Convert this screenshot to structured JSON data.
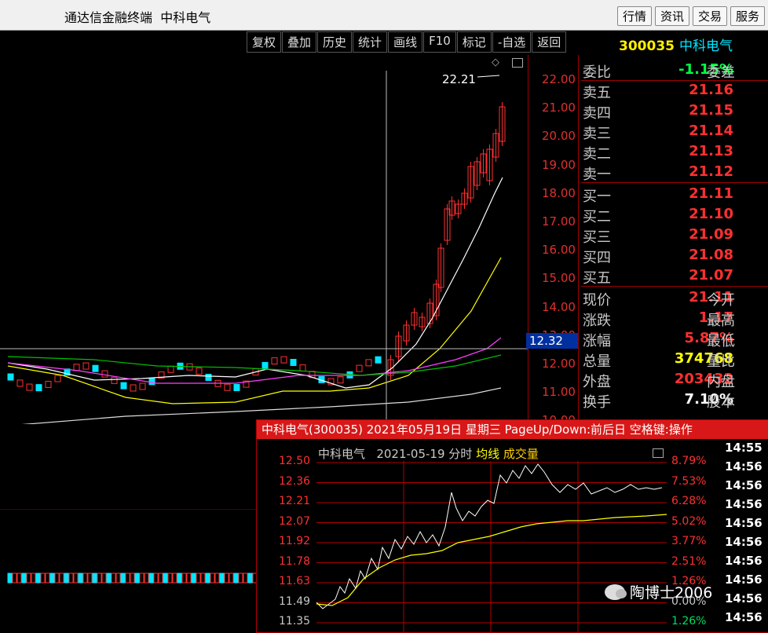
{
  "window": {
    "app_title": "通达信金融终端",
    "stock_name": "中科电气",
    "menu": [
      "行情",
      "资讯",
      "交易",
      "服务"
    ]
  },
  "toolbar": [
    "复权",
    "叠加",
    "历史",
    "统计",
    "画线",
    "F10",
    "标记",
    "-自选",
    "返回"
  ],
  "stock": {
    "code": "300035",
    "name": "中科电气"
  },
  "price_axis": [
    "22.00",
    "21.00",
    "20.00",
    "19.00",
    "18.00",
    "17.00",
    "16.00",
    "15.00",
    "14.00",
    "13.00",
    "12.00",
    "11.00",
    "10.00"
  ],
  "crosshair_price": "12.32",
  "peak_label": "22.21",
  "quote": {
    "weibi_label": "委比",
    "weibi_value": "-1.15%",
    "weicha_label": "委差",
    "asks": [
      {
        "label": "卖五",
        "price": "21.16"
      },
      {
        "label": "卖四",
        "price": "21.15"
      },
      {
        "label": "卖三",
        "price": "21.14"
      },
      {
        "label": "卖二",
        "price": "21.13"
      },
      {
        "label": "卖一",
        "price": "21.12"
      }
    ],
    "bids": [
      {
        "label": "买一",
        "price": "21.11"
      },
      {
        "label": "买二",
        "price": "21.10"
      },
      {
        "label": "买三",
        "price": "21.09"
      },
      {
        "label": "买四",
        "price": "21.08"
      },
      {
        "label": "买五",
        "price": "21.07"
      }
    ],
    "stats": [
      {
        "label": "现价",
        "value": "21.11",
        "tail": "今开",
        "color": "red"
      },
      {
        "label": "涨跌",
        "value": "1.17",
        "tail": "最高",
        "color": "red"
      },
      {
        "label": "涨幅",
        "value": "5.87%",
        "tail": "最低",
        "color": "red"
      },
      {
        "label": "总量",
        "value": "374768",
        "tail": "量比",
        "color": "yellow"
      },
      {
        "label": "外盘",
        "value": "203432",
        "tail": "内盘",
        "color": "red"
      },
      {
        "label": "换手",
        "value": "7.10%",
        "tail": "股本",
        "color": "white"
      }
    ]
  },
  "popup": {
    "header": "中科电气(300035) 2021年05月19日 星期三 PageUp/Down:前后日 空格键:操作",
    "sub_name": "中科电气",
    "sub_date": "2021-05-19 分时",
    "sub_avg": "均线",
    "sub_vol": "成交量",
    "left_axis": [
      "12.50",
      "12.36",
      "12.21",
      "12.07",
      "11.92",
      "11.78",
      "11.63",
      "11.49",
      "11.35"
    ],
    "right_axis": [
      "8.79%",
      "7.53%",
      "6.28%",
      "5.02%",
      "3.77%",
      "2.51%",
      "1.26%",
      "0.00%",
      "1.26%"
    ],
    "times": [
      "14:55",
      "14:56",
      "14:56",
      "14:56",
      "14:56",
      "14:56",
      "14:56",
      "14:56",
      "14:56",
      "14:56"
    ]
  },
  "watermark": "陶博士2006",
  "colors": {
    "up": "#ff3030",
    "down": "#00e5ff",
    "ma5": "#ffffff",
    "ma10": "#ffff00",
    "ma20": "#ff40ff",
    "ma60": "#00c000"
  }
}
